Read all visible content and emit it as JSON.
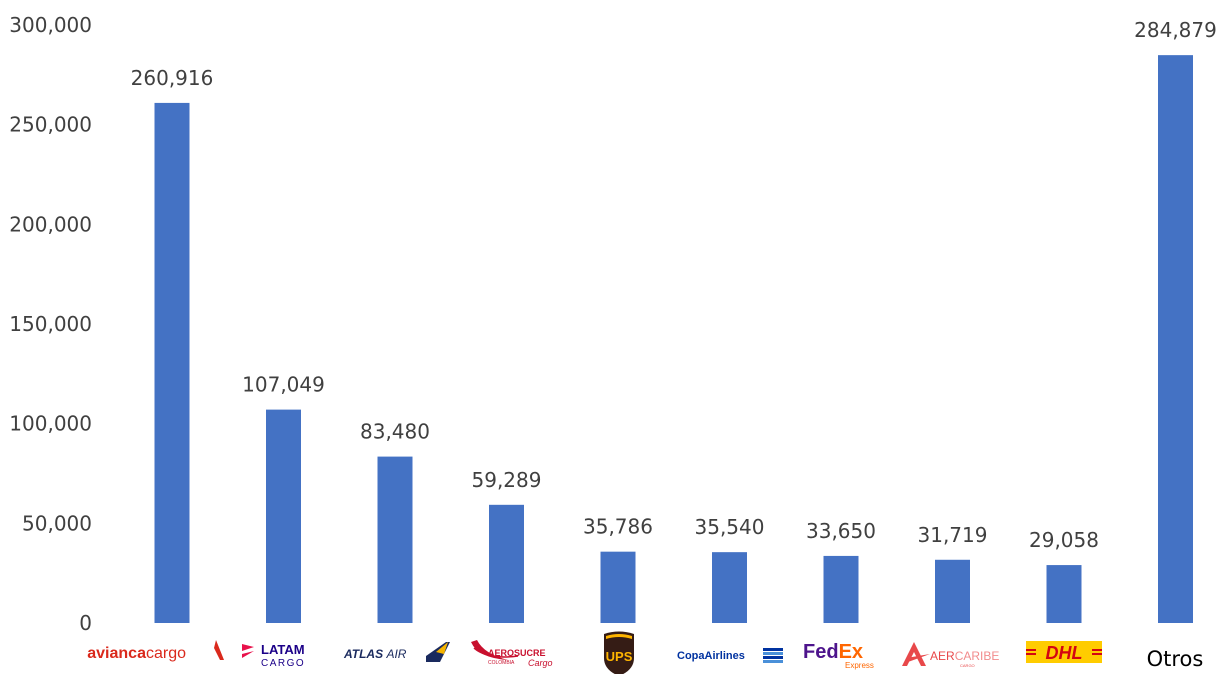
{
  "chart_data": {
    "type": "bar",
    "categories": [
      "avianca cargo",
      "LATAM CARGO",
      "ATLAS AIR",
      "AEROSUCRE Cargo",
      "UPS",
      "CopaAirlines",
      "FedEx Express",
      "AERCARIBE CARGO",
      "DHL",
      "Otros"
    ],
    "values": [
      260916,
      107049,
      83480,
      59289,
      35786,
      35540,
      33650,
      31719,
      29058,
      284879
    ],
    "data_labels": [
      "260,916",
      "107,049",
      "83,480",
      "59,289",
      "35,786",
      "35,540",
      "33,650",
      "31,719",
      "29,058",
      "284,879"
    ],
    "ylim": [
      0,
      300000
    ],
    "yticks": [
      0,
      50000,
      100000,
      150000,
      200000,
      250000,
      300000
    ],
    "ytick_labels": [
      "0",
      "50,000",
      "100,000",
      "150,000",
      "200,000",
      "250,000",
      "300,000"
    ],
    "bar_color": "#4472C4",
    "grid": false,
    "legend": "none",
    "title": "",
    "xlabel": "",
    "ylabel": ""
  },
  "logos": {
    "avianca": {
      "word1": "avianca",
      "word2": "cargo",
      "color": "#DA291C"
    },
    "latam": {
      "word1": "LATAM",
      "word2": "CARGO",
      "color": "#1B0088",
      "accent": "#E8114B"
    },
    "atlas": {
      "word1": "ATLAS",
      "word2": "AIR",
      "color": "#1A2A5E",
      "accent": "#F5B400"
    },
    "aerosucre": {
      "word1": "AEROSUCRE",
      "word2": "Cargo",
      "sub": "COLOMBIA",
      "color": "#C8102E"
    },
    "ups": {
      "word1": "UPS",
      "color": "#351C15",
      "accent": "#FFB500"
    },
    "copa": {
      "word1": "CopaAirlines",
      "color": "#0032A0"
    },
    "fedex": {
      "word1": "Fed",
      "word2": "Ex",
      "sub": "Express",
      "color": "#4D148C",
      "accent": "#FF6600"
    },
    "aercaribe": {
      "word1": "AER",
      "word2": "CARIBE",
      "sub": "CARGO",
      "color": "#E8484A"
    },
    "dhl": {
      "word1": "DHL",
      "color": "#D40511",
      "accent": "#FFCC00"
    },
    "otros": {
      "label": "Otros"
    }
  }
}
